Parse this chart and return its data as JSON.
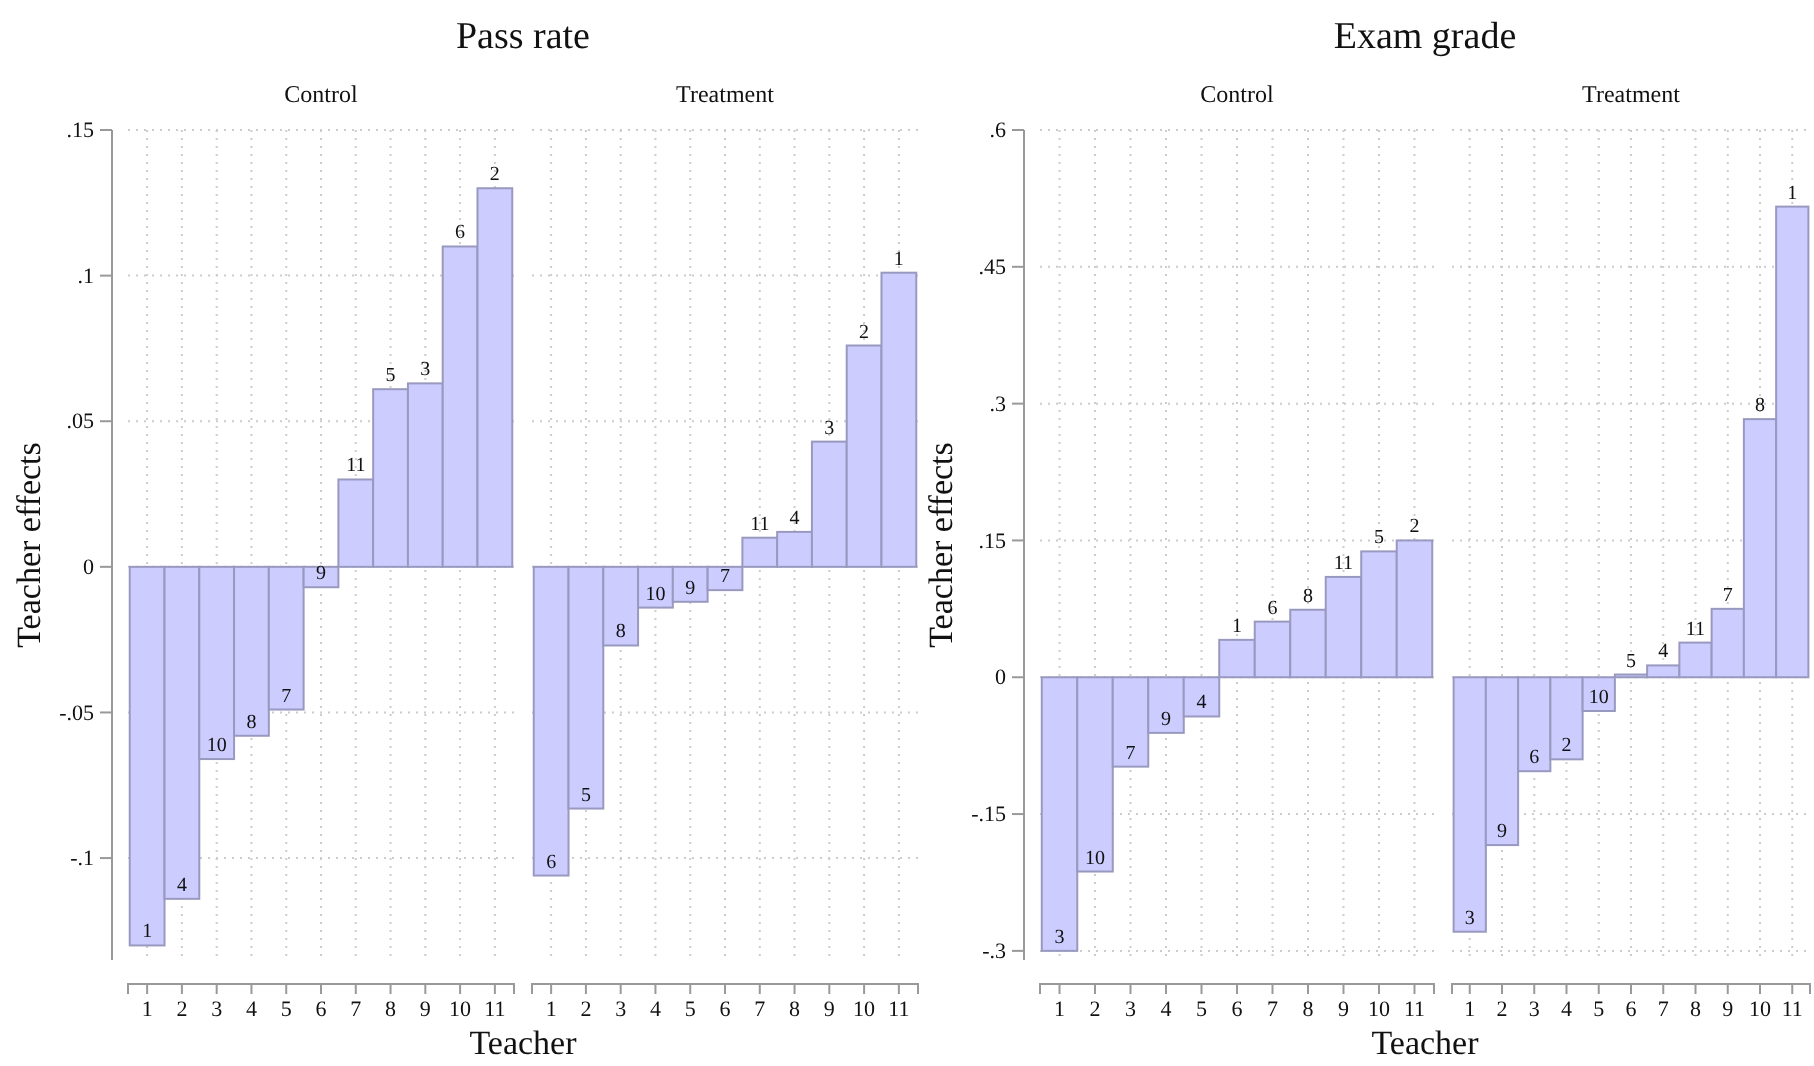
{
  "chart_data": [
    {
      "type": "bar",
      "title": "Pass rate",
      "subtitle": "Control",
      "xlabel": "Teacher",
      "ylabel": "Teacher effects",
      "categories": [
        "1",
        "2",
        "3",
        "4",
        "5",
        "6",
        "7",
        "8",
        "9",
        "10",
        "11"
      ],
      "color": "#ccccff",
      "values": [
        -0.13,
        -0.114,
        -0.066,
        -0.058,
        -0.049,
        -0.007,
        0.03,
        0.061,
        0.063,
        0.11,
        0.13
      ],
      "annotations": [
        {
          "text": "1",
          "x": "1",
          "y": -0.13
        },
        {
          "text": "4",
          "x": "2",
          "y": -0.114
        },
        {
          "text": "10",
          "x": "3",
          "y": -0.066
        },
        {
          "text": "8",
          "x": "4",
          "y": -0.058
        },
        {
          "text": "7",
          "x": "5",
          "y": -0.049
        },
        {
          "text": "9",
          "x": "6",
          "y": -0.007
        },
        {
          "text": "11",
          "x": "7",
          "y": 0.03
        },
        {
          "text": "5",
          "x": "8",
          "y": 0.061
        },
        {
          "text": "3",
          "x": "9",
          "y": 0.063
        },
        {
          "text": "6",
          "x": "10",
          "y": 0.11
        },
        {
          "text": "2",
          "x": "11",
          "y": 0.13
        }
      ],
      "ylim": [
        -0.135,
        0.15
      ],
      "yticks": [
        {
          "value": -0.1,
          "label": "-.1"
        },
        {
          "value": -0.05,
          "label": "-.05"
        },
        {
          "value": 0,
          "label": "0"
        },
        {
          "value": 0.05,
          "label": ".05"
        },
        {
          "value": 0.1,
          "label": ".1"
        },
        {
          "value": 0.15,
          "label": ".15"
        }
      ],
      "grid": true
    },
    {
      "type": "bar",
      "subtitle": "Treatment",
      "categories": [
        "1",
        "2",
        "3",
        "4",
        "5",
        "6",
        "7",
        "8",
        "9",
        "10",
        "11"
      ],
      "color": "#ccccff",
      "values": [
        -0.106,
        -0.083,
        -0.027,
        -0.014,
        -0.012,
        -0.008,
        0.01,
        0.012,
        0.043,
        0.076,
        0.101
      ],
      "annotations": [
        {
          "text": "6",
          "x": "1",
          "y": -0.106
        },
        {
          "text": "5",
          "x": "2",
          "y": -0.083
        },
        {
          "text": "8",
          "x": "3",
          "y": -0.027
        },
        {
          "text": "10",
          "x": "4",
          "y": -0.014
        },
        {
          "text": "9",
          "x": "5",
          "y": -0.012
        },
        {
          "text": "7",
          "x": "6",
          "y": -0.008
        },
        {
          "text": "11",
          "x": "7",
          "y": 0.01
        },
        {
          "text": "4",
          "x": "8",
          "y": 0.012
        },
        {
          "text": "3",
          "x": "9",
          "y": 0.043
        },
        {
          "text": "2",
          "x": "10",
          "y": 0.076
        },
        {
          "text": "1",
          "x": "11",
          "y": 0.101
        }
      ],
      "ylim": [
        -0.135,
        0.15
      ],
      "yticks": [
        {
          "value": -0.1,
          "label": null
        },
        {
          "value": -0.05,
          "label": null
        },
        {
          "value": 0,
          "label": null
        },
        {
          "value": 0.05,
          "label": null
        },
        {
          "value": 0.1,
          "label": null
        },
        {
          "value": 0.15,
          "label": null
        }
      ],
      "grid": true,
      "tick_labels": "x"
    },
    {
      "type": "bar",
      "title": "Exam grade",
      "subtitle": "Control",
      "xlabel": "Teacher",
      "ylabel": "Teacher effects",
      "categories": [
        "1",
        "2",
        "3",
        "4",
        "5",
        "6",
        "7",
        "8",
        "9",
        "10",
        "11"
      ],
      "color": "#ccccff",
      "values": [
        -0.3,
        -0.213,
        -0.098,
        -0.061,
        -0.043,
        0.041,
        0.061,
        0.074,
        0.11,
        0.138,
        0.15
      ],
      "annotations": [
        {
          "text": "3",
          "x": "1",
          "y": -0.3
        },
        {
          "text": "10",
          "x": "2",
          "y": -0.213
        },
        {
          "text": "7",
          "x": "3",
          "y": -0.098
        },
        {
          "text": "9",
          "x": "4",
          "y": -0.061
        },
        {
          "text": "4",
          "x": "5",
          "y": -0.043
        },
        {
          "text": "1",
          "x": "6",
          "y": 0.041
        },
        {
          "text": "6",
          "x": "7",
          "y": 0.061
        },
        {
          "text": "8",
          "x": "8",
          "y": 0.074
        },
        {
          "text": "11",
          "x": "9",
          "y": 0.11
        },
        {
          "text": "5",
          "x": "10",
          "y": 0.138
        },
        {
          "text": "2",
          "x": "11",
          "y": 0.15
        }
      ],
      "ylim": [
        -0.31,
        0.6
      ],
      "yticks": [
        {
          "value": -0.3,
          "label": "-.3"
        },
        {
          "value": -0.15,
          "label": "-.15"
        },
        {
          "value": 0,
          "label": "0"
        },
        {
          "value": 0.15,
          "label": ".15"
        },
        {
          "value": 0.3,
          "label": ".3"
        },
        {
          "value": 0.45,
          "label": ".45"
        },
        {
          "value": 0.6,
          "label": ".6"
        }
      ],
      "grid": true
    },
    {
      "type": "bar",
      "subtitle": "Treatment",
      "categories": [
        "1",
        "2",
        "3",
        "4",
        "5",
        "6",
        "7",
        "8",
        "9",
        "10",
        "11"
      ],
      "color": "#ccccff",
      "values": [
        -0.279,
        -0.184,
        -0.103,
        -0.09,
        -0.037,
        0.003,
        0.013,
        0.038,
        0.075,
        0.283,
        0.516
      ],
      "annotations": [
        {
          "text": "3",
          "x": "1",
          "y": -0.279
        },
        {
          "text": "9",
          "x": "2",
          "y": -0.184
        },
        {
          "text": "6",
          "x": "3",
          "y": -0.103
        },
        {
          "text": "2",
          "x": "4",
          "y": -0.09
        },
        {
          "text": "10",
          "x": "5",
          "y": -0.037
        },
        {
          "text": "5",
          "x": "6",
          "y": 0.003
        },
        {
          "text": "4",
          "x": "7",
          "y": 0.013
        },
        {
          "text": "11",
          "x": "8",
          "y": 0.038
        },
        {
          "text": "7",
          "x": "9",
          "y": 0.075
        },
        {
          "text": "8",
          "x": "10",
          "y": 0.283
        },
        {
          "text": "1",
          "x": "11",
          "y": 0.516
        }
      ],
      "ylim": [
        -0.31,
        0.6
      ],
      "yticks": [
        {
          "value": -0.3,
          "label": null
        },
        {
          "value": -0.15,
          "label": null
        },
        {
          "value": 0,
          "label": null
        },
        {
          "value": 0.15,
          "label": null
        },
        {
          "value": 0.3,
          "label": null
        },
        {
          "value": 0.45,
          "label": null
        },
        {
          "value": 0.6,
          "label": null
        }
      ],
      "grid": true,
      "tick_labels": "x"
    }
  ]
}
